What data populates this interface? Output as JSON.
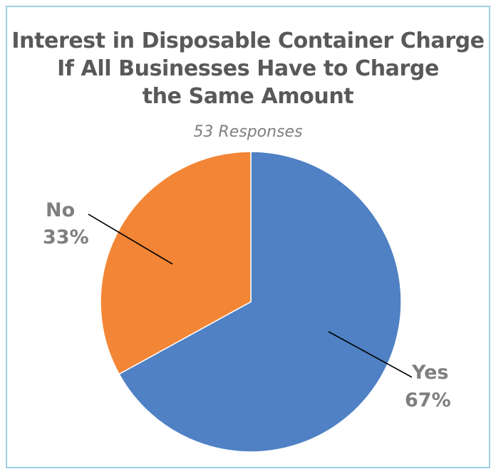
{
  "chart_data": {
    "type": "pie",
    "title_lines": [
      "Interest in Disposable Container Charge",
      "If All Businesses Have to Charge",
      "the Same Amount"
    ],
    "subtitle": "53 Responses",
    "slices": [
      {
        "name": "Yes",
        "value": 67,
        "label": "67%",
        "color": "#4f81c4"
      },
      {
        "name": "No",
        "value": 33,
        "label": "33%",
        "color": "#f38636"
      }
    ],
    "start": "top",
    "direction": "clockwise"
  }
}
